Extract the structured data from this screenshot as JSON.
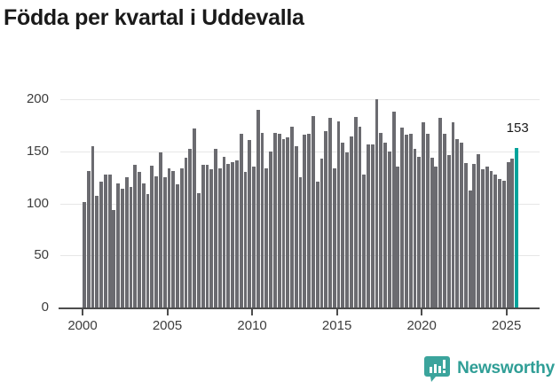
{
  "title": "Födda per kvartal i Uddevalla",
  "chart_data": {
    "type": "bar",
    "frequency": "quarterly",
    "start_period": "2000-Q1",
    "end_period": "2025-Q3",
    "values": [
      101,
      131,
      155,
      107,
      121,
      128,
      128,
      94,
      119,
      114,
      125,
      116,
      137,
      130,
      119,
      109,
      136,
      126,
      149,
      125,
      134,
      131,
      118,
      134,
      144,
      152,
      172,
      110,
      137,
      137,
      133,
      152,
      134,
      145,
      138,
      140,
      141,
      167,
      130,
      161,
      135,
      190,
      168,
      134,
      150,
      168,
      167,
      162,
      163,
      174,
      155,
      125,
      166,
      167,
      184,
      121,
      143,
      169,
      182,
      134,
      179,
      158,
      149,
      164,
      183,
      174,
      128,
      157,
      157,
      200,
      168,
      158,
      150,
      188,
      135,
      173,
      166,
      167,
      152,
      145,
      178,
      167,
      144,
      135,
      182,
      167,
      146,
      178,
      162,
      158,
      139,
      112,
      138,
      147,
      133,
      135,
      131,
      128,
      123,
      122,
      140,
      143,
      153
    ],
    "highlight": {
      "index": 102,
      "value": 153,
      "label": "153"
    },
    "title": "Födda per kvartal i Uddevalla",
    "xlabel": "",
    "ylabel": "",
    "ylim": [
      0,
      200
    ],
    "yticks": [
      0,
      50,
      100,
      150,
      200
    ],
    "xticks": [
      2000,
      2005,
      2010,
      2015,
      2020,
      2025
    ],
    "grid": true,
    "legend_position": "none"
  },
  "colors": {
    "bar": "#6b6b70",
    "highlight": "#00a39b",
    "gridline": "#e6e6e6",
    "axis": "#4d4d4d",
    "tick_text": "#3d3d3d",
    "title_text": "#1a1a1a",
    "brand": "#2f9e96"
  },
  "footer": {
    "brand": "Newsworthy",
    "logo_icon": "bar-chart-speech-bubble"
  }
}
